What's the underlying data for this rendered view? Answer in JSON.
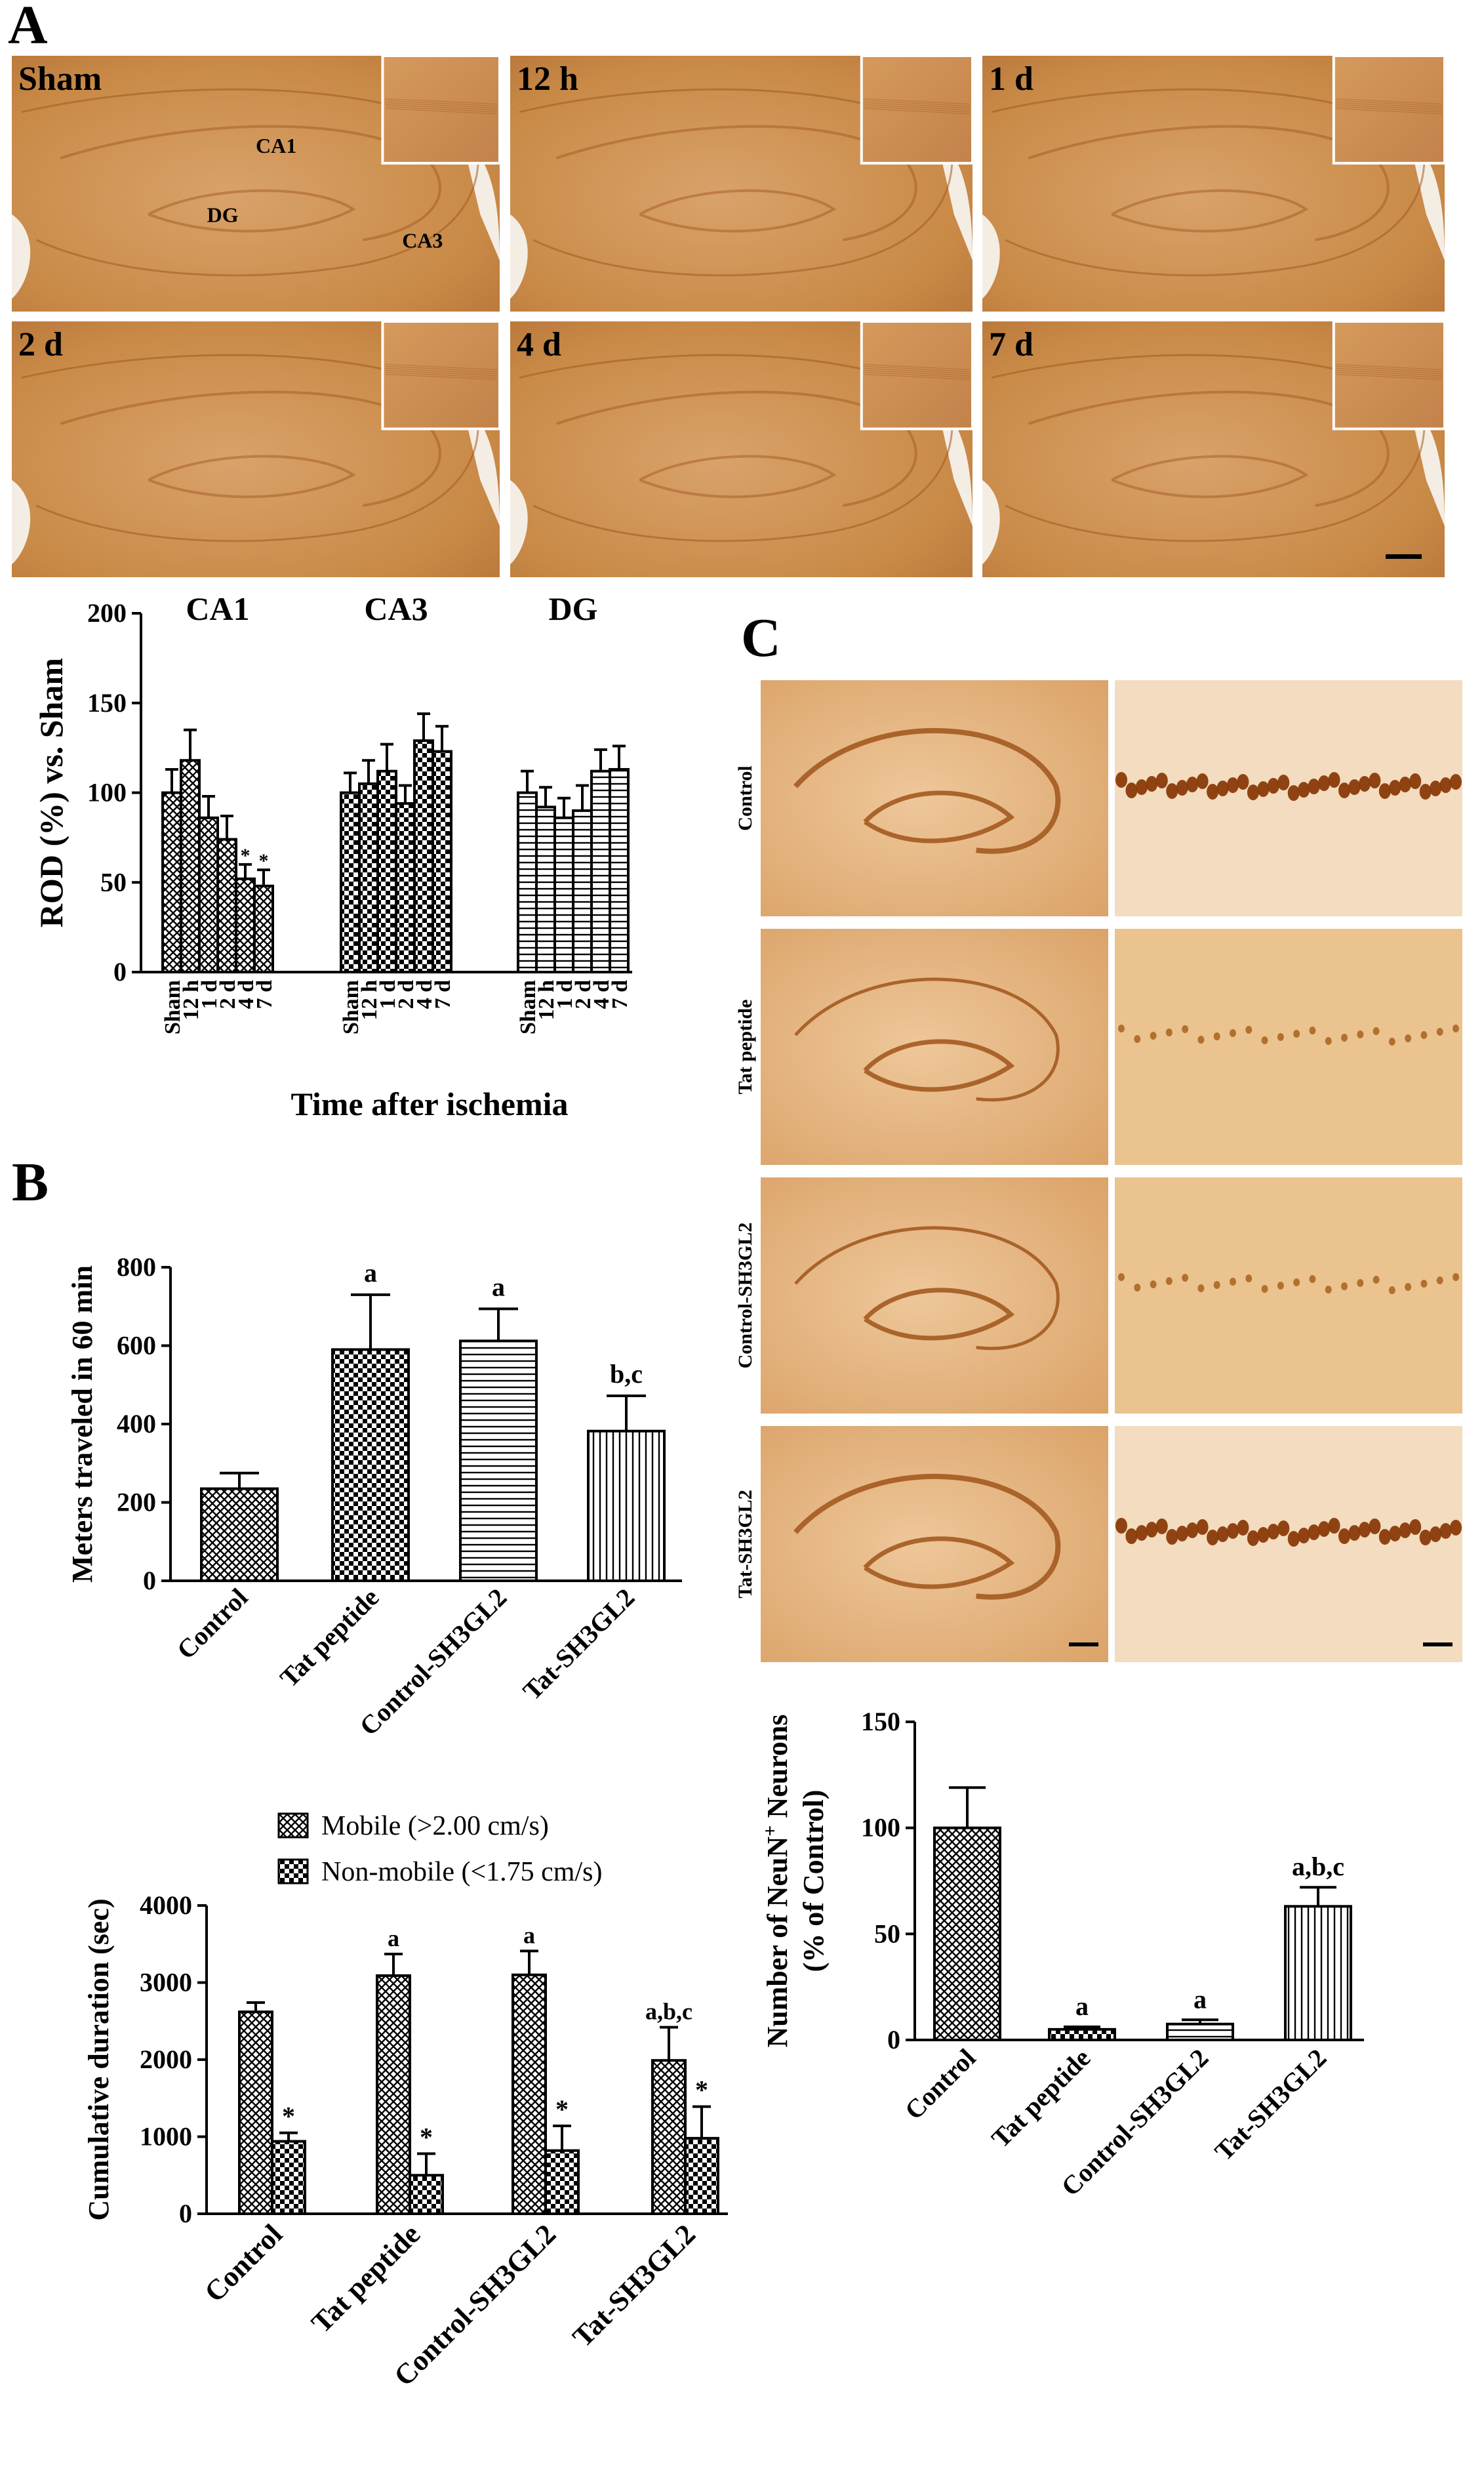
{
  "panel_labels": {
    "a": "A",
    "b": "B",
    "c": "C"
  },
  "colors": {
    "stain": "#c98a47",
    "stain_dark": "#a35a20",
    "stain_light": "#e7b47f",
    "inset_border": "#ffffff",
    "background": "#ffffff"
  },
  "micrographs_a": [
    {
      "label": "Sham",
      "regions": [
        "CA1",
        "DG",
        "CA3"
      ]
    },
    {
      "label": "12 h"
    },
    {
      "label": "1 d"
    },
    {
      "label": "2 d"
    },
    {
      "label": "4 d"
    },
    {
      "label": "7 d"
    }
  ],
  "micrographs_c": [
    {
      "label": "Control",
      "neurons": "dense"
    },
    {
      "label": "Tat peptide",
      "neurons": "sparse"
    },
    {
      "label": "Control-SH3GL2",
      "neurons": "sparse"
    },
    {
      "label": "Tat-SH3GL2",
      "neurons": "dense"
    }
  ],
  "chart_data": [
    {
      "id": "rod",
      "type": "bar",
      "group_labels": [
        "CA1",
        "CA3",
        "DG"
      ],
      "categories": [
        "Sham",
        "12 h",
        "1 d",
        "2 d",
        "4 d",
        "7 d"
      ],
      "series": [
        {
          "name": "CA1",
          "values": [
            100,
            118,
            86,
            74,
            52,
            48
          ],
          "errors": [
            13,
            17,
            12,
            13,
            8,
            9
          ],
          "marks": [
            "",
            "",
            "",
            "",
            "*",
            "*"
          ],
          "pattern": "diag-cross"
        },
        {
          "name": "CA3",
          "values": [
            100,
            105,
            112,
            94,
            129,
            123
          ],
          "errors": [
            11,
            13,
            15,
            10,
            15,
            14
          ],
          "marks": [
            "",
            "",
            "",
            "",
            "",
            ""
          ],
          "pattern": "checker"
        },
        {
          "name": "DG",
          "values": [
            100,
            92,
            86,
            90,
            112,
            113
          ],
          "errors": [
            12,
            11,
            11,
            14,
            12,
            13
          ],
          "marks": [
            "",
            "",
            "",
            "",
            "",
            ""
          ],
          "pattern": "horizontal"
        }
      ],
      "xlabel": "Time after ischemia",
      "ylabel": "ROD (%) vs. Sham",
      "ylim": [
        0,
        200
      ],
      "yticks": [
        0,
        50,
        100,
        150,
        200
      ]
    },
    {
      "id": "distance",
      "type": "bar",
      "categories": [
        "Control",
        "Tat peptide",
        "Control-SH3GL2",
        "Tat-SH3GL2"
      ],
      "values": [
        235,
        590,
        612,
        382
      ],
      "errors": [
        40,
        140,
        82,
        90
      ],
      "marks": [
        "",
        "a",
        "a",
        "b,c"
      ],
      "patterns": [
        "diag-cross",
        "checker",
        "horizontal",
        "vertical"
      ],
      "ylabel": "Meters traveled in 60 min",
      "ylim": [
        0,
        800
      ],
      "yticks": [
        0,
        200,
        400,
        600,
        800
      ]
    },
    {
      "id": "duration",
      "type": "bar",
      "categories": [
        "Control",
        "Tat peptide",
        "Control-SH3GL2",
        "Tat-SH3GL2"
      ],
      "series": [
        {
          "name": "Mobile (>2.00 cm/s)",
          "values": [
            2620,
            3090,
            3100,
            1990
          ],
          "errors": [
            120,
            280,
            310,
            430
          ],
          "marks": [
            "",
            "a",
            "a",
            "a,b,c"
          ],
          "pattern": "diag-cross"
        },
        {
          "name": "Non-mobile (<1.75 cm/s)",
          "values": [
            940,
            500,
            820,
            980
          ],
          "errors": [
            110,
            280,
            320,
            410
          ],
          "marks": [
            "*",
            "*",
            "*",
            "*"
          ],
          "pattern": "checker"
        }
      ],
      "ylabel": "Cumulative duration (sec)",
      "ylim": [
        0,
        4000
      ],
      "yticks": [
        0,
        1000,
        2000,
        3000,
        4000
      ],
      "legend": "top"
    },
    {
      "id": "neun",
      "type": "bar",
      "categories": [
        "Control",
        "Tat peptide",
        "Control-SH3GL2",
        "Tat-SH3GL2"
      ],
      "values": [
        100,
        5,
        7.5,
        63
      ],
      "errors": [
        19,
        1.2,
        2,
        9
      ],
      "marks": [
        "",
        "a",
        "a",
        "a,b,c"
      ],
      "patterns": [
        "diag-cross",
        "checker",
        "horizontal",
        "vertical"
      ],
      "ylabel_line1": "Number of NeuN",
      "ylabel_sup": "+",
      "ylabel_line1_end": " Neurons",
      "ylabel_line2": "(% of Control)",
      "ylim": [
        0,
        150
      ],
      "yticks": [
        0,
        50,
        100,
        150
      ]
    }
  ]
}
